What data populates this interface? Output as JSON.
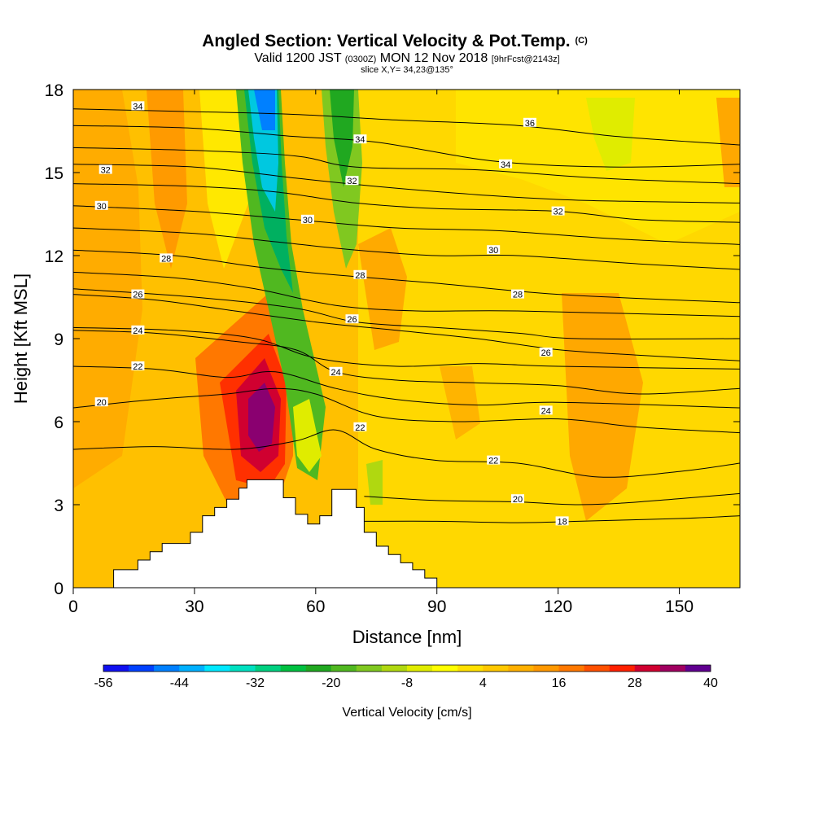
{
  "title": {
    "main": "Angled Section: Vertical Velocity & Pot.Temp.",
    "main_suffix": "(C)",
    "valid_prefix": "Valid 1200 JST",
    "valid_utc": "(0300Z)",
    "valid_date": "MON 12 Nov 2018",
    "valid_fcst": "[9hrFcst@2143z]",
    "slice": "slice X,Y= 34,23@135°"
  },
  "chart_data": {
    "type": "heatmap",
    "xlabel": "Distance [nm]",
    "ylabel": "Height [Kft MSL]",
    "xlim": [
      0,
      165
    ],
    "ylim": [
      0,
      18
    ],
    "xticks": [
      0,
      30,
      60,
      90,
      120,
      150
    ],
    "yticks": [
      0,
      3,
      6,
      9,
      12,
      15,
      18
    ],
    "colorbar": {
      "label": "Vertical Velocity [cm/s]",
      "range": [
        -56,
        40
      ],
      "step": 4,
      "tick_labels": [
        "-56",
        "-44",
        "-32",
        "-20",
        "-8",
        "4",
        "16",
        "28",
        "40"
      ],
      "colors": [
        "#1010f0",
        "#0040ff",
        "#0080ff",
        "#00b0ff",
        "#00e8ff",
        "#00e0c0",
        "#00d080",
        "#00c040",
        "#20a820",
        "#50b820",
        "#80c820",
        "#b0d810",
        "#e0ec00",
        "#ffff00",
        "#ffe000",
        "#ffc800",
        "#ffb000",
        "#ff9800",
        "#ff7800",
        "#ff5000",
        "#ff2000",
        "#d00030",
        "#a00060",
        "#600090"
      ]
    },
    "theta_contours": [
      {
        "level": 18,
        "label": "18",
        "points": [
          [
            72,
            2.4
          ],
          [
            90,
            2.4
          ],
          [
            110,
            2.35
          ],
          [
            125,
            2.4
          ],
          [
            150,
            2.5
          ],
          [
            165,
            2.6
          ]
        ]
      },
      {
        "level": 20,
        "label": "20",
        "points": [
          [
            72,
            3.3
          ],
          [
            90,
            3.15
          ],
          [
            110,
            3.1
          ],
          [
            125,
            3.0
          ],
          [
            140,
            3.1
          ],
          [
            165,
            3.4
          ]
        ]
      },
      {
        "level": 22,
        "label": "22",
        "points": [
          [
            0,
            5.0
          ],
          [
            20,
            5.1
          ],
          [
            40,
            5.0
          ],
          [
            55,
            5.3
          ],
          [
            65,
            5.7
          ],
          [
            75,
            5.0
          ],
          [
            90,
            4.6
          ],
          [
            110,
            4.5
          ],
          [
            130,
            4.0
          ],
          [
            150,
            4.2
          ],
          [
            165,
            4.5
          ]
        ]
      },
      {
        "level": 20,
        "label": "20",
        "points": [
          [
            0,
            6.5
          ],
          [
            20,
            6.8
          ],
          [
            38,
            7.0
          ],
          [
            50,
            7.2
          ],
          [
            60,
            7.0
          ],
          [
            75,
            6.2
          ],
          [
            95,
            6.0
          ],
          [
            120,
            6.1
          ],
          [
            140,
            5.8
          ],
          [
            165,
            5.6
          ]
        ]
      },
      {
        "level": 22,
        "label": "22",
        "points": [
          [
            0,
            8.0
          ],
          [
            20,
            7.9
          ],
          [
            38,
            7.6
          ],
          [
            50,
            7.8
          ],
          [
            65,
            7.2
          ],
          [
            80,
            6.8
          ],
          [
            100,
            6.6
          ],
          [
            120,
            6.7
          ],
          [
            165,
            6.5
          ]
        ]
      },
      {
        "level": 24,
        "label": "24",
        "points": [
          [
            0,
            9.3
          ],
          [
            20,
            9.2
          ],
          [
            40,
            8.9
          ],
          [
            55,
            8.6
          ],
          [
            65,
            7.8
          ],
          [
            80,
            7.5
          ],
          [
            100,
            7.4
          ],
          [
            120,
            7.3
          ],
          [
            140,
            7.0
          ],
          [
            165,
            7.2
          ]
        ]
      },
      {
        "level": 24,
        "label": "24",
        "points": [
          [
            0,
            9.4
          ],
          [
            25,
            9.3
          ],
          [
            45,
            9.0
          ],
          [
            60,
            8.3
          ],
          [
            80,
            8.0
          ],
          [
            100,
            8.1
          ],
          [
            120,
            8.0
          ],
          [
            165,
            7.9
          ]
        ]
      },
      {
        "level": 26,
        "label": "26",
        "points": [
          [
            0,
            10.6
          ],
          [
            20,
            10.4
          ],
          [
            40,
            10.0
          ],
          [
            60,
            9.6
          ],
          [
            80,
            9.3
          ],
          [
            100,
            9.0
          ],
          [
            120,
            8.6
          ],
          [
            140,
            8.4
          ],
          [
            165,
            8.2
          ]
        ]
      },
      {
        "level": 26,
        "label": "26",
        "points": [
          [
            0,
            10.8
          ],
          [
            30,
            10.5
          ],
          [
            55,
            10.1
          ],
          [
            70,
            9.6
          ],
          [
            90,
            9.4
          ],
          [
            110,
            9.2
          ],
          [
            125,
            9.0
          ],
          [
            165,
            9.0
          ]
        ]
      },
      {
        "level": 28,
        "label": "28",
        "points": [
          [
            0,
            11.4
          ],
          [
            25,
            11.2
          ],
          [
            45,
            10.8
          ],
          [
            65,
            10.2
          ],
          [
            85,
            10.0
          ],
          [
            110,
            10.0
          ],
          [
            165,
            9.8
          ]
        ]
      },
      {
        "level": 28,
        "label": "28",
        "points": [
          [
            0,
            12.2
          ],
          [
            25,
            12.0
          ],
          [
            45,
            11.6
          ],
          [
            65,
            11.3
          ],
          [
            90,
            11.0
          ],
          [
            120,
            10.6
          ],
          [
            165,
            10.3
          ]
        ]
      },
      {
        "level": 30,
        "label": "30",
        "points": [
          [
            0,
            13.0
          ],
          [
            30,
            12.8
          ],
          [
            50,
            12.5
          ],
          [
            70,
            12.2
          ],
          [
            90,
            12.0
          ],
          [
            110,
            12.0
          ],
          [
            140,
            11.7
          ],
          [
            165,
            11.5
          ]
        ]
      },
      {
        "level": 30,
        "label": "30",
        "points": [
          [
            0,
            13.8
          ],
          [
            30,
            13.6
          ],
          [
            55,
            13.3
          ],
          [
            80,
            13.0
          ],
          [
            105,
            12.9
          ],
          [
            135,
            12.6
          ],
          [
            165,
            12.4
          ]
        ]
      },
      {
        "level": 32,
        "label": "32",
        "points": [
          [
            0,
            14.6
          ],
          [
            30,
            14.5
          ],
          [
            50,
            14.3
          ],
          [
            70,
            13.9
          ],
          [
            90,
            13.7
          ],
          [
            120,
            13.6
          ],
          [
            140,
            13.3
          ],
          [
            165,
            13.2
          ]
        ]
      },
      {
        "level": 32,
        "label": "32",
        "points": [
          [
            0,
            15.3
          ],
          [
            30,
            15.2
          ],
          [
            55,
            14.8
          ],
          [
            75,
            14.5
          ],
          [
            100,
            14.2
          ],
          [
            125,
            14.0
          ],
          [
            165,
            13.9
          ]
        ]
      },
      {
        "level": 34,
        "label": "34",
        "points": [
          [
            0,
            15.9
          ],
          [
            30,
            15.8
          ],
          [
            55,
            15.6
          ],
          [
            70,
            15.2
          ],
          [
            100,
            15.1
          ],
          [
            130,
            14.8
          ],
          [
            165,
            14.6
          ]
        ]
      },
      {
        "level": 34,
        "label": "34",
        "points": [
          [
            0,
            16.7
          ],
          [
            30,
            16.6
          ],
          [
            55,
            16.3
          ],
          [
            75,
            16.1
          ],
          [
            105,
            15.4
          ],
          [
            135,
            15.2
          ],
          [
            165,
            15.3
          ]
        ]
      },
      {
        "level": 36,
        "label": "36",
        "points": [
          [
            0,
            17.3
          ],
          [
            30,
            17.2
          ],
          [
            55,
            17.1
          ],
          [
            80,
            16.9
          ],
          [
            110,
            16.7
          ],
          [
            135,
            16.3
          ],
          [
            165,
            16.0
          ]
        ]
      }
    ],
    "contour_labels": [
      {
        "text": "34",
        "x": 16,
        "y": 17.4
      },
      {
        "text": "32",
        "x": 8,
        "y": 15.1
      },
      {
        "text": "30",
        "x": 7,
        "y": 13.8
      },
      {
        "text": "28",
        "x": 23,
        "y": 11.9
      },
      {
        "text": "26",
        "x": 16,
        "y": 10.6
      },
      {
        "text": "24",
        "x": 16,
        "y": 9.3
      },
      {
        "text": "22",
        "x": 16,
        "y": 8.0
      },
      {
        "text": "20",
        "x": 7,
        "y": 6.7
      },
      {
        "text": "34",
        "x": 71,
        "y": 16.2
      },
      {
        "text": "32",
        "x": 69,
        "y": 14.7
      },
      {
        "text": "30",
        "x": 58,
        "y": 13.3
      },
      {
        "text": "28",
        "x": 71,
        "y": 11.3
      },
      {
        "text": "26",
        "x": 69,
        "y": 9.7
      },
      {
        "text": "24",
        "x": 65,
        "y": 7.8
      },
      {
        "text": "22",
        "x": 71,
        "y": 5.8
      },
      {
        "text": "36",
        "x": 113,
        "y": 16.8
      },
      {
        "text": "34",
        "x": 107,
        "y": 15.3
      },
      {
        "text": "32",
        "x": 120,
        "y": 13.6
      },
      {
        "text": "30",
        "x": 104,
        "y": 12.2
      },
      {
        "text": "28",
        "x": 110,
        "y": 10.6
      },
      {
        "text": "26",
        "x": 117,
        "y": 8.5
      },
      {
        "text": "24",
        "x": 117,
        "y": 6.4
      },
      {
        "text": "22",
        "x": 104,
        "y": 4.6
      },
      {
        "text": "20",
        "x": 110,
        "y": 3.2
      },
      {
        "text": "18",
        "x": 121,
        "y": 2.4
      }
    ],
    "terrain": [
      [
        0,
        0
      ],
      [
        10,
        0
      ],
      [
        10,
        0.65
      ],
      [
        16,
        0.65
      ],
      [
        16,
        1.0
      ],
      [
        19,
        1.0
      ],
      [
        19,
        1.3
      ],
      [
        22,
        1.3
      ],
      [
        22,
        1.6
      ],
      [
        29,
        1.6
      ],
      [
        29,
        2.0
      ],
      [
        32,
        2.0
      ],
      [
        32,
        2.6
      ],
      [
        35,
        2.6
      ],
      [
        35,
        2.9
      ],
      [
        38,
        2.9
      ],
      [
        38,
        3.2
      ],
      [
        41,
        3.2
      ],
      [
        41,
        3.6
      ],
      [
        43,
        3.6
      ],
      [
        43,
        3.9
      ],
      [
        52,
        3.9
      ],
      [
        52,
        3.25
      ],
      [
        55,
        3.25
      ],
      [
        55,
        2.65
      ],
      [
        58,
        2.65
      ],
      [
        58,
        2.3
      ],
      [
        61,
        2.3
      ],
      [
        61,
        2.6
      ],
      [
        64,
        2.6
      ],
      [
        64,
        3.55
      ],
      [
        70,
        3.55
      ],
      [
        70,
        2.9
      ],
      [
        72,
        2.9
      ],
      [
        72,
        2.0
      ],
      [
        75,
        2.0
      ],
      [
        75,
        1.5
      ],
      [
        78,
        1.5
      ],
      [
        78,
        1.2
      ],
      [
        81,
        1.2
      ],
      [
        81,
        0.9
      ],
      [
        84,
        0.9
      ],
      [
        84,
        0.65
      ],
      [
        87,
        0.65
      ],
      [
        87,
        0.35
      ],
      [
        90,
        0.35
      ],
      [
        90,
        0
      ]
    ]
  }
}
